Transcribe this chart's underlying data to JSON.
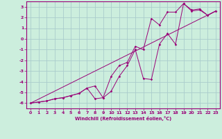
{
  "xlabel": "Windchill (Refroidissement éolien,°C)",
  "bg_color": "#cceedd",
  "grid_color": "#aacccc",
  "line_color": "#990077",
  "xlim": [
    -0.5,
    23.5
  ],
  "ylim": [
    -6.5,
    3.5
  ],
  "xticks": [
    0,
    1,
    2,
    3,
    4,
    5,
    6,
    7,
    8,
    9,
    10,
    11,
    12,
    13,
    14,
    15,
    16,
    17,
    18,
    19,
    20,
    21,
    22,
    23
  ],
  "yticks": [
    -6,
    -5,
    -4,
    -3,
    -2,
    -1,
    0,
    1,
    2,
    3
  ],
  "line1_x": [
    0,
    1,
    2,
    3,
    4,
    5,
    6,
    7,
    8,
    9,
    10,
    11,
    12,
    13,
    14,
    15,
    16,
    17,
    18,
    19,
    20,
    21,
    22,
    23
  ],
  "line1_y": [
    -6.0,
    -5.9,
    -5.8,
    -5.6,
    -5.5,
    -5.3,
    -5.1,
    -4.6,
    -4.4,
    -5.5,
    -4.9,
    -3.5,
    -2.5,
    -1.0,
    -3.7,
    -3.8,
    -0.5,
    0.5,
    -0.5,
    3.3,
    2.6,
    2.7,
    2.2,
    2.6
  ],
  "line2_x": [
    0,
    1,
    2,
    3,
    4,
    5,
    6,
    7,
    8,
    9,
    10,
    11,
    12,
    13,
    14,
    15,
    16,
    17,
    18,
    19,
    20,
    21,
    22,
    23
  ],
  "line2_y": [
    -6.0,
    -5.9,
    -5.8,
    -5.6,
    -5.5,
    -5.3,
    -5.1,
    -4.6,
    -5.6,
    -5.5,
    -3.5,
    -2.5,
    -2.2,
    -0.7,
    -1.0,
    1.9,
    1.3,
    2.5,
    2.5,
    3.3,
    2.7,
    2.8,
    2.2,
    2.6
  ],
  "line3_x": [
    0,
    23
  ],
  "line3_y": [
    -6.0,
    2.6
  ]
}
